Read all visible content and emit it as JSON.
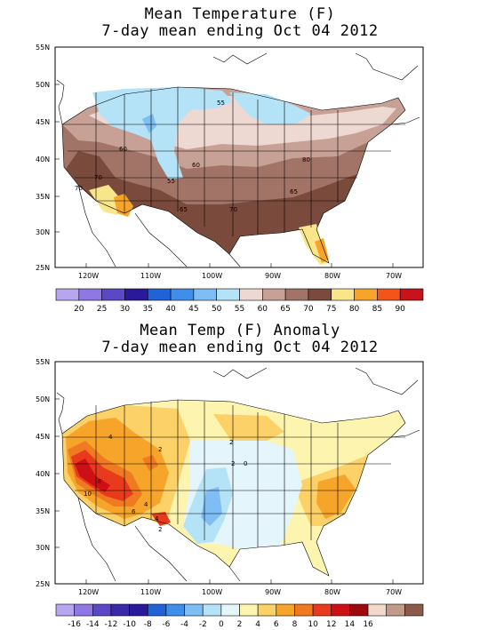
{
  "top_map": {
    "title_line1": "Mean Temperature (F)",
    "title_line2": "7-day mean ending Oct 04 2012",
    "lat_labels": [
      "55N",
      "50N",
      "45N",
      "40N",
      "35N",
      "30N",
      "25N"
    ],
    "lon_labels": [
      "120W",
      "110W",
      "100W",
      "90W",
      "80W",
      "70W"
    ],
    "contour_labels": [
      "55",
      "60",
      "60",
      "55",
      "80",
      "70",
      "65",
      "70",
      "65",
      "70"
    ],
    "colorbar": {
      "colors": [
        "#b7a6ef",
        "#8f78e3",
        "#5b48c7",
        "#2a1a9b",
        "#1f63d6",
        "#3f8ee9",
        "#7fbdf5",
        "#b4e3f7",
        "#eed9d2",
        "#c8a196",
        "#a27467",
        "#7a4a3c",
        "#f9e68a",
        "#f7a52a",
        "#f25419",
        "#c8121c"
      ],
      "labels": [
        "20",
        "25",
        "30",
        "35",
        "40",
        "45",
        "50",
        "55",
        "60",
        "65",
        "70",
        "75",
        "80",
        "85",
        "90"
      ]
    }
  },
  "bottom_map": {
    "title_line1": "Mean Temp (F) Anomaly",
    "title_line2": "7-day mean ending Oct 04 2012",
    "lat_labels": [
      "55N",
      "50N",
      "45N",
      "40N",
      "35N",
      "30N",
      "25N"
    ],
    "lon_labels": [
      "120W",
      "110W",
      "100W",
      "90W",
      "80W",
      "70W"
    ],
    "contour_labels": [
      "4",
      "2",
      "2",
      "2",
      "0",
      "8",
      "10",
      "6",
      "4",
      "4",
      "2"
    ],
    "colorbar": {
      "colors": [
        "#b7a6ef",
        "#8f78e3",
        "#5b48c7",
        "#3a2aa8",
        "#2a1a9b",
        "#1f63d6",
        "#3f8ee9",
        "#7fbdf5",
        "#b4e3f7",
        "#e4f6fb",
        "#fdf4b0",
        "#fbd168",
        "#f7a52a",
        "#f07a22",
        "#e83a1c",
        "#cc1016",
        "#9c0a10",
        "#f3d9cc",
        "#c29a8c",
        "#8a5b4b"
      ],
      "labels": [
        "-16",
        "-14",
        "-12",
        "-10",
        "-8",
        "-6",
        "-4",
        "-2",
        "0",
        "2",
        "4",
        "6",
        "8",
        "10",
        "12",
        "14",
        "16"
      ]
    }
  }
}
